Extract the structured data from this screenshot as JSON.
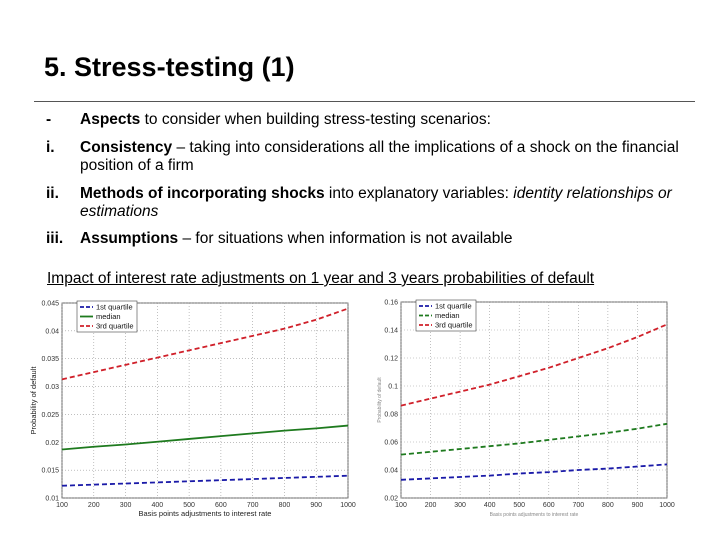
{
  "slide": {
    "title": "5. Stress-testing (1)",
    "items": [
      {
        "marker": "-",
        "bold": "Aspects",
        "rest": " to consider when building stress-testing scenarios:"
      },
      {
        "marker": "i.",
        "bold": "Consistency",
        "rest": " – taking into considerations all the implications of a shock on the financial position of a firm"
      },
      {
        "marker": "ii.",
        "bold": "Methods of incorporating shocks",
        "rest": " into explanatory variables: ",
        "italic": "identity relationships or estimations"
      },
      {
        "marker": "iii.",
        "bold": "Assumptions",
        "rest": " – for situations when information is not available"
      }
    ],
    "caption": "Impact of interest rate adjustments on 1 year and 3 years probabilities of default"
  },
  "chart_data": [
    {
      "type": "line",
      "title": "",
      "xlabel": "Basis points adjustments to interest rate",
      "ylabel": "Probability of default",
      "x": [
        100,
        200,
        300,
        400,
        500,
        600,
        700,
        800,
        900,
        1000
      ],
      "xlim": [
        100,
        1000
      ],
      "ylim": [
        0.01,
        0.045
      ],
      "yticks": [
        0.01,
        0.015,
        0.02,
        0.025,
        0.03,
        0.035,
        0.04,
        0.045
      ],
      "ytick_labels": [
        "0.01",
        "0.015",
        "0.02",
        "0.025",
        "0.03",
        "0.035",
        "0.04",
        "0.045"
      ],
      "grid": true,
      "legend": "top-left",
      "series": [
        {
          "name": "1st quartile",
          "color": "#1a1aa8",
          "dash": true,
          "values": [
            0.0122,
            0.0124,
            0.0126,
            0.0128,
            0.013,
            0.0132,
            0.0134,
            0.0136,
            0.0138,
            0.014
          ]
        },
        {
          "name": "median",
          "color": "#1e7a1e",
          "dash": false,
          "values": [
            0.0187,
            0.0192,
            0.0196,
            0.0201,
            0.0206,
            0.0211,
            0.0216,
            0.0221,
            0.0225,
            0.023
          ]
        },
        {
          "name": "3rd quartile",
          "color": "#d0202a",
          "dash": true,
          "values": [
            0.0313,
            0.0326,
            0.0339,
            0.0352,
            0.0365,
            0.0378,
            0.0391,
            0.0404,
            0.042,
            0.044
          ]
        }
      ]
    },
    {
      "type": "line",
      "title": "",
      "xlabel": "Basis points adjustments to interest rate",
      "ylabel": "Probability of default",
      "x": [
        100,
        200,
        300,
        400,
        500,
        600,
        700,
        800,
        900,
        1000
      ],
      "xlim": [
        100,
        1000
      ],
      "ylim": [
        0.02,
        0.16
      ],
      "yticks": [
        0.02,
        0.04,
        0.06,
        0.08,
        0.1,
        0.12,
        0.14,
        0.16
      ],
      "ytick_labels": [
        "0.02",
        "0.04",
        "0.06",
        "0.08",
        "0.1",
        "0.12",
        "0.14",
        "0.16"
      ],
      "grid": true,
      "legend": "top-left",
      "series": [
        {
          "name": "1st quartile",
          "color": "#1a1aa8",
          "dash": true,
          "values": [
            0.033,
            0.034,
            0.035,
            0.036,
            0.0375,
            0.0385,
            0.04,
            0.041,
            0.0425,
            0.044
          ]
        },
        {
          "name": "median",
          "color": "#1e7a1e",
          "dash": true,
          "values": [
            0.051,
            0.053,
            0.055,
            0.057,
            0.059,
            0.0615,
            0.064,
            0.0665,
            0.0695,
            0.073
          ]
        },
        {
          "name": "3rd quartile",
          "color": "#d0202a",
          "dash": true,
          "values": [
            0.086,
            0.091,
            0.096,
            0.101,
            0.107,
            0.113,
            0.12,
            0.127,
            0.135,
            0.144
          ]
        }
      ]
    }
  ]
}
